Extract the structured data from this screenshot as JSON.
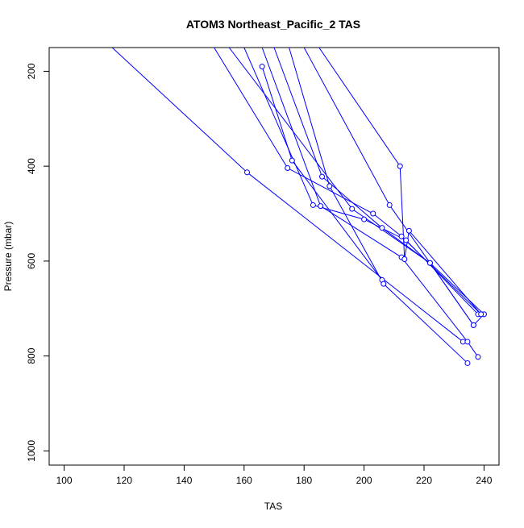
{
  "chart_data": {
    "type": "line",
    "title": "ATOM3 Northeast_Pacific_2 TAS",
    "xlabel": "TAS",
    "ylabel": "Pressure (mbar)",
    "xlim": [
      95,
      245
    ],
    "ylim": [
      1030,
      150
    ],
    "y_reversed": true,
    "x_ticks": [
      100,
      120,
      140,
      160,
      180,
      200,
      220,
      240
    ],
    "y_ticks": [
      200,
      400,
      600,
      800,
      1000
    ],
    "grid": false,
    "legend": "none",
    "color": "#0000ff",
    "marker": "open-circle",
    "series": [
      {
        "points": [
          [
            116,
            150
          ],
          [
            161,
            413
          ],
          [
            233,
            770
          ]
        ]
      },
      {
        "points": [
          [
            166,
            190
          ],
          [
            176,
            388
          ],
          [
            206,
            640
          ]
        ]
      },
      {
        "points": [
          [
            150,
            150
          ],
          [
            174.5,
            404
          ],
          [
            203,
            500
          ],
          [
            212.5,
            548
          ],
          [
            239,
            712
          ]
        ]
      },
      {
        "points": [
          [
            160,
            150
          ],
          [
            183,
            482
          ],
          [
            200,
            512
          ],
          [
            214,
            556
          ],
          [
            238,
            712
          ]
        ]
      },
      {
        "points": [
          [
            166,
            150
          ],
          [
            185.5,
            484
          ],
          [
            212.5,
            592
          ],
          [
            234.5,
            770
          ],
          [
            238,
            802
          ]
        ]
      },
      {
        "points": [
          [
            170,
            150
          ],
          [
            186,
            422
          ],
          [
            206,
            530
          ],
          [
            222,
            604
          ],
          [
            240,
            712
          ]
        ]
      },
      {
        "points": [
          [
            175,
            150
          ],
          [
            188.5,
            442
          ],
          [
            206.5,
            648
          ],
          [
            234.5,
            815
          ]
        ]
      },
      {
        "points": [
          [
            180,
            150
          ],
          [
            208.5,
            482
          ],
          [
            236.5,
            735
          ],
          [
            240,
            712
          ]
        ]
      },
      {
        "points": [
          [
            185,
            150
          ],
          [
            212,
            400
          ],
          [
            213.5,
            596
          ],
          [
            215,
            536
          ],
          [
            239,
            712
          ]
        ]
      },
      {
        "points": [
          [
            155,
            150
          ],
          [
            196,
            490
          ],
          [
            222,
            604
          ],
          [
            236.5,
            735
          ]
        ]
      }
    ]
  }
}
